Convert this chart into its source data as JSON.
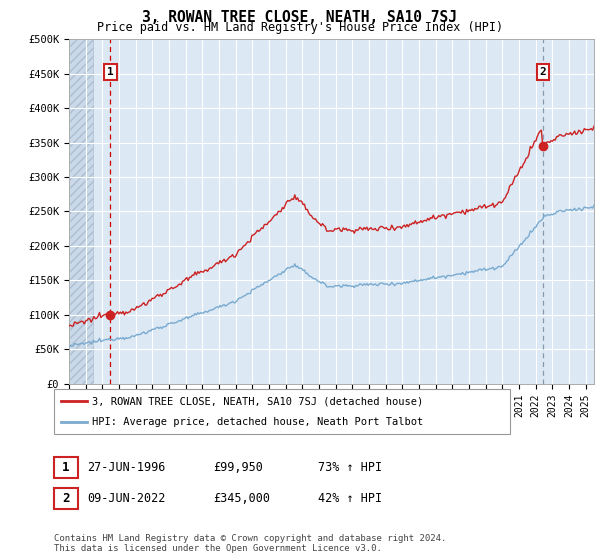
{
  "title": "3, ROWAN TREE CLOSE, NEATH, SA10 7SJ",
  "subtitle": "Price paid vs. HM Land Registry's House Price Index (HPI)",
  "ylim": [
    0,
    500000
  ],
  "yticks": [
    0,
    50000,
    100000,
    150000,
    200000,
    250000,
    300000,
    350000,
    400000,
    450000,
    500000
  ],
  "ytick_labels": [
    "£0",
    "£50K",
    "£100K",
    "£150K",
    "£200K",
    "£250K",
    "£300K",
    "£350K",
    "£400K",
    "£450K",
    "£500K"
  ],
  "xlim_start": 1994.0,
  "xlim_end": 2025.5,
  "background_color": "#ffffff",
  "plot_bg_color": "#dce9f5",
  "grid_color": "#ffffff",
  "sale1_x": 1996.484,
  "sale1_y": 99950,
  "sale2_x": 2022.44,
  "sale2_y": 345000,
  "sale1_label": "1",
  "sale2_label": "2",
  "sale1_vline_color": "#cc0000",
  "sale2_vline_color": "#8899aa",
  "legend_line1": "3, ROWAN TREE CLOSE, NEATH, SA10 7SJ (detached house)",
  "legend_line2": "HPI: Average price, detached house, Neath Port Talbot",
  "table_row1_num": "1",
  "table_row1_date": "27-JUN-1996",
  "table_row1_price": "£99,950",
  "table_row1_hpi": "73% ↑ HPI",
  "table_row2_num": "2",
  "table_row2_date": "09-JUN-2022",
  "table_row2_price": "£345,000",
  "table_row2_hpi": "42% ↑ HPI",
  "footnote": "Contains HM Land Registry data © Crown copyright and database right 2024.\nThis data is licensed under the Open Government Licence v3.0.",
  "red_color": "#cc2222",
  "blue_color": "#7aaacf",
  "hatch_bg": "#c8d8e8",
  "hatch_end": 1995.42
}
